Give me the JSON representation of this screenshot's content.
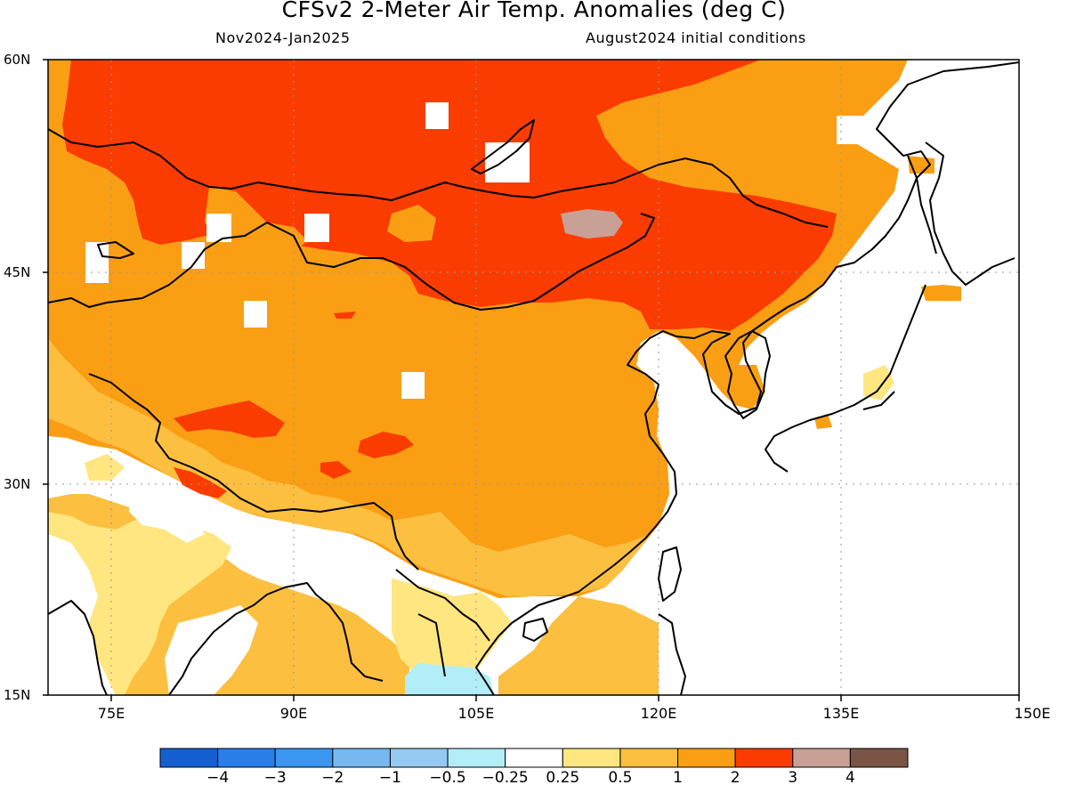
{
  "title": "CFSv2 2-Meter Air Temp. Anomalies (deg C)",
  "period": "Nov2024-Jan2025",
  "initial_conditions": "August2024 initial conditions",
  "lat_labels": [
    "60N",
    "45N",
    "30N",
    "15N"
  ],
  "lon_labels": [
    "75E",
    "90E",
    "105E",
    "120E",
    "135E",
    "150E"
  ],
  "colorbar": {
    "colors": [
      "#1560d0",
      "#2a7ee8",
      "#3c96f0",
      "#78b8f0",
      "#96caf2",
      "#b2eef8",
      "#ffffff",
      "#ffe680",
      "#fcbf40",
      "#fa9e14",
      "#fa3c00",
      "#c8a095",
      "#7a5545"
    ],
    "labels": [
      "−4",
      "−3",
      "−2",
      "−1",
      "−0.5",
      "−0.25",
      "0.25",
      "0.5",
      "1",
      "2",
      "3",
      "4"
    ]
  },
  "map_colors": {
    "white": "#ffffff",
    "pale_yellow": "#ffe680",
    "light_orange": "#fcbf40",
    "orange": "#fa9e14",
    "red": "#fa3c00",
    "mauve": "#c8a095",
    "light_blue": "#b2eef8",
    "coast": "#000000"
  }
}
